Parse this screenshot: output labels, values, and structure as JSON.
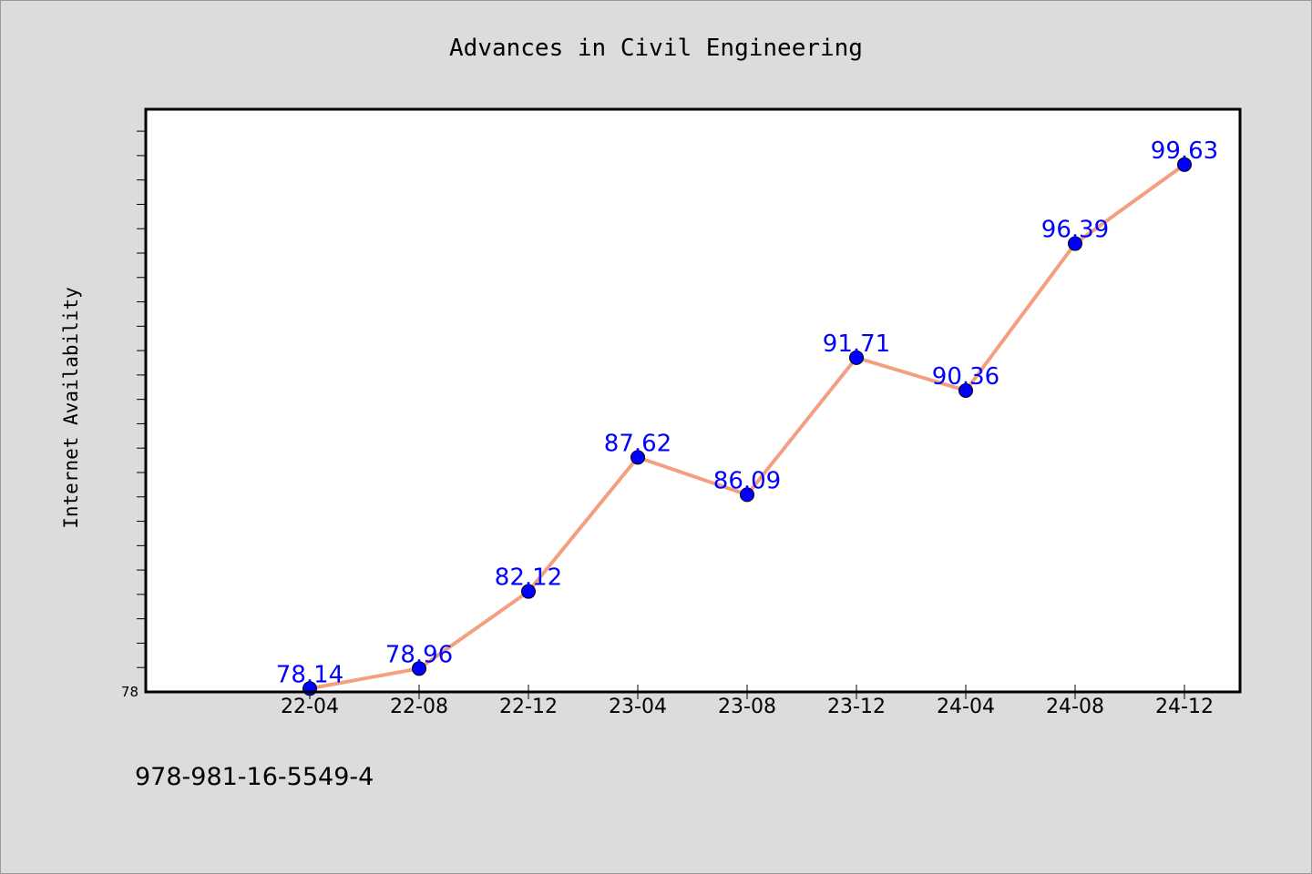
{
  "chart_data": {
    "type": "line",
    "title": "Advances in Civil Engineering",
    "xlabel": "",
    "ylabel": "Internet Availability",
    "categories": [
      "22-04",
      "22-08",
      "22-12",
      "23-04",
      "23-08",
      "23-12",
      "24-04",
      "24-08",
      "24-12"
    ],
    "series": [
      {
        "values": [
          78.14,
          78.96,
          82.12,
          87.62,
          86.09,
          91.71,
          90.36,
          96.39,
          99.63
        ],
        "labels": [
          "78.14",
          "78.96",
          "82.12",
          "87.62",
          "86.09",
          "91.71",
          "90.36",
          "96.39",
          "99.63"
        ],
        "line_color": "#f4a080",
        "marker_color": "#0000ff"
      }
    ],
    "ylim": [
      78,
      101.9
    ],
    "yticks_labeled": [
      "78"
    ],
    "y_minor_step": 1,
    "grid": false,
    "legend": "none",
    "background": "#ffffff"
  },
  "footer": {
    "isbn": "978-981-16-5549-4"
  },
  "colors": {
    "page_background": "#dcdcdc",
    "label_color": "#0000ff"
  }
}
